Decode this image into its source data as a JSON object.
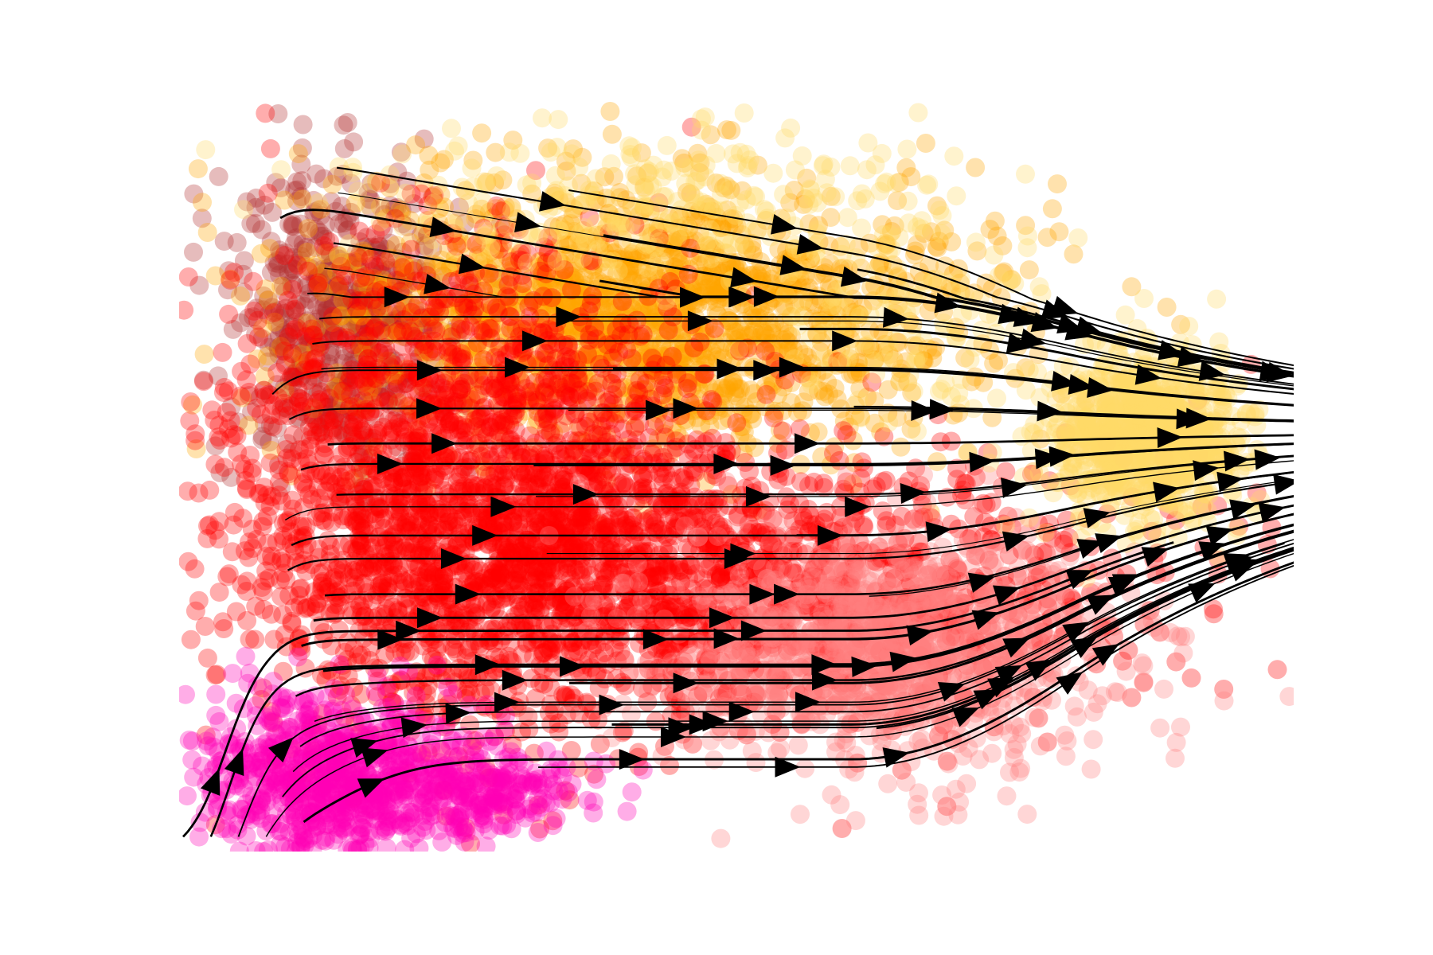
{
  "chart_data": {
    "type": "scatter",
    "title": "",
    "xlabel": "",
    "ylabel": "",
    "axes_visible": false,
    "grid": false,
    "legend": "none",
    "overlay": "velocity-streamlines",
    "xlim": [
      0,
      100
    ],
    "ylim": [
      0,
      100
    ],
    "colors": {
      "yellow": "#ffd966",
      "orange": "#ffa500",
      "red": "#ff0000",
      "salmon": "#ff7f7f",
      "magenta": "#ff00b4",
      "dark-red": "#b03030",
      "arrow": "#000000"
    },
    "clusters": [
      {
        "name": "",
        "color": "#ffd966",
        "center": [
          87,
          56
        ],
        "spread": [
          4.5,
          5.5
        ],
        "count": 900
      },
      {
        "name": "",
        "color": "#ffd966",
        "center": [
          42,
          88
        ],
        "spread": [
          14,
          5
        ],
        "count": 260
      },
      {
        "name": "",
        "color": "#ffd966",
        "center": [
          66,
          72
        ],
        "spread": [
          7,
          6
        ],
        "count": 120
      },
      {
        "name": "",
        "color": "#ffa500",
        "center": [
          42,
          72
        ],
        "spread": [
          15,
          9
        ],
        "count": 1700
      },
      {
        "name": "",
        "color": "#ff0000",
        "center": [
          26,
          48
        ],
        "spread": [
          12,
          16
        ],
        "count": 2200
      },
      {
        "name": "",
        "color": "#ff0000",
        "center": [
          50,
          36
        ],
        "spread": [
          18,
          9
        ],
        "count": 1400
      },
      {
        "name": "",
        "color": "#ff7f7f",
        "center": [
          64,
          28
        ],
        "spread": [
          10,
          8
        ],
        "count": 1100
      },
      {
        "name": "",
        "color": "#ff00b4",
        "center": [
          13,
          10
        ],
        "spread": [
          6,
          6
        ],
        "count": 700
      },
      {
        "name": "",
        "color": "#ff00b4",
        "center": [
          25,
          8
        ],
        "spread": [
          6,
          3
        ],
        "count": 300
      },
      {
        "name": "",
        "color": "#b03030",
        "center": [
          14,
          72
        ],
        "spread": [
          5,
          10
        ],
        "count": 600
      }
    ]
  }
}
